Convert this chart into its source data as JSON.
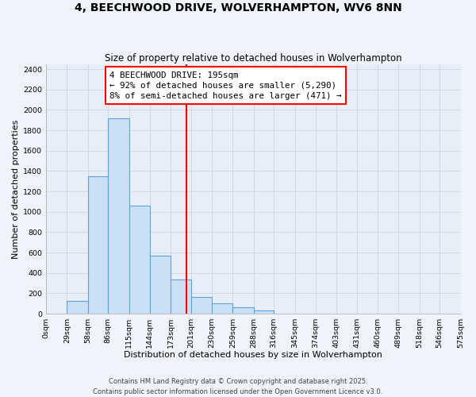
{
  "title": "4, BEECHWOOD DRIVE, WOLVERHAMPTON, WV6 8NN",
  "subtitle": "Size of property relative to detached houses in Wolverhampton",
  "xlabel": "Distribution of detached houses by size in Wolverhampton",
  "ylabel": "Number of detached properties",
  "bar_edges": [
    0,
    29,
    58,
    86,
    115,
    144,
    173,
    201,
    230,
    259,
    288,
    316,
    345,
    374,
    403,
    431,
    460,
    489,
    518,
    546,
    575
  ],
  "bar_heights": [
    0,
    125,
    1350,
    1920,
    1060,
    570,
    335,
    165,
    105,
    60,
    30,
    0,
    0,
    0,
    0,
    0,
    0,
    0,
    0,
    0
  ],
  "bar_color": "#cce0f5",
  "bar_edge_color": "#5ba3d9",
  "vline_x": 195,
  "vline_color": "red",
  "annotation_line1": "4 BEECHWOOD DRIVE: 195sqm",
  "annotation_line2": "← 92% of detached houses are smaller (5,290)",
  "annotation_line3": "8% of semi-detached houses are larger (471) →",
  "ylim": [
    0,
    2450
  ],
  "xlim": [
    0,
    575
  ],
  "tick_positions": [
    0,
    29,
    58,
    86,
    115,
    144,
    173,
    201,
    230,
    259,
    288,
    316,
    345,
    374,
    403,
    431,
    460,
    489,
    518,
    546,
    575
  ],
  "tick_labels": [
    "0sqm",
    "29sqm",
    "58sqm",
    "86sqm",
    "115sqm",
    "144sqm",
    "173sqm",
    "201sqm",
    "230sqm",
    "259sqm",
    "288sqm",
    "316sqm",
    "345sqm",
    "374sqm",
    "403sqm",
    "431sqm",
    "460sqm",
    "489sqm",
    "518sqm",
    "546sqm",
    "575sqm"
  ],
  "ytick_positions": [
    0,
    200,
    400,
    600,
    800,
    1000,
    1200,
    1400,
    1600,
    1800,
    2000,
    2200,
    2400
  ],
  "footer_line1": "Contains HM Land Registry data © Crown copyright and database right 2025.",
  "footer_line2": "Contains public sector information licensed under the Open Government Licence v3.0.",
  "bg_color": "#f0f4fa",
  "plot_bg_color": "#e8eef8",
  "grid_color": "#c8d4e8",
  "title_fontsize": 10,
  "subtitle_fontsize": 8.5,
  "axis_label_fontsize": 8,
  "tick_fontsize": 6.8,
  "annotation_fontsize": 7.8,
  "footer_fontsize": 6
}
